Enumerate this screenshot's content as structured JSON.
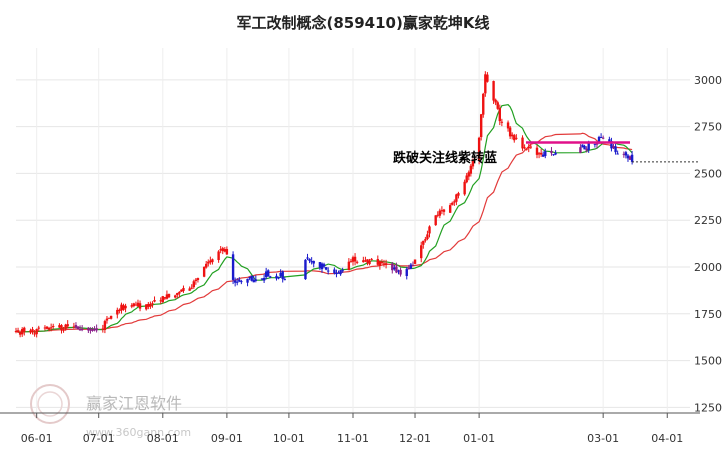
{
  "chart_data": {
    "type": "candlestick",
    "title": "军工改制概念(859410)赢家乾坤K线",
    "annotation": "跌破关注线紫转蓝",
    "watermark": {
      "brand": "赢家江恩软件",
      "url": "www.360gann.com"
    },
    "x_ticks": [
      "06-01",
      "07-01",
      "08-01",
      "09-01",
      "10-01",
      "11-01",
      "12-01",
      "01-01",
      "03-01",
      "04-01"
    ],
    "y_ticks": [
      1250,
      1500,
      1750,
      2000,
      2250,
      2500,
      2750,
      3000
    ],
    "ylim": [
      1220,
      3170
    ],
    "grid": true,
    "colors": {
      "up": "#ee1111",
      "down": "#1a1acc",
      "purple": "#8a1f8a",
      "short_ma": "#22a022",
      "long_ma": "#e23b3b",
      "focus_line": "#e0108a"
    },
    "anchors": [
      [
        "2023-05-22",
        1650
      ],
      [
        "2023-06-01",
        1660
      ],
      [
        "2023-06-20",
        1685
      ],
      [
        "2023-06-30",
        1650
      ],
      [
        "2023-07-10",
        1780
      ],
      [
        "2023-07-25",
        1800
      ],
      [
        "2023-08-05",
        1860
      ],
      [
        "2023-08-15",
        1890
      ],
      [
        "2023-08-22",
        2020
      ],
      [
        "2023-08-30",
        2100
      ],
      [
        "2023-09-01",
        2060
      ],
      [
        "2023-09-05",
        1910
      ],
      [
        "2023-09-20",
        1960
      ],
      [
        "2023-09-30",
        1950
      ],
      [
        "2023-10-05",
        2060
      ],
      [
        "2023-10-16",
        2010
      ],
      [
        "2023-10-25",
        1960
      ],
      [
        "2023-11-01",
        2040
      ],
      [
        "2023-11-15",
        2020
      ],
      [
        "2023-11-25",
        1970
      ],
      [
        "2023-12-01",
        2030
      ],
      [
        "2023-12-10",
        2260
      ],
      [
        "2023-12-20",
        2350
      ],
      [
        "2023-12-31",
        2600
      ],
      [
        "2024-01-04",
        3020
      ],
      [
        "2024-01-08",
        2900
      ],
      [
        "2024-01-12",
        2760
      ],
      [
        "2024-01-20",
        2660
      ],
      [
        "2024-02-01",
        2600
      ],
      [
        "2024-02-20",
        2640
      ],
      [
        "2024-03-01",
        2690
      ],
      [
        "2024-03-08",
        2620
      ],
      [
        "2024-03-15",
        2570
      ]
    ],
    "candle_count": 197,
    "focus_line_value": 2665
  }
}
